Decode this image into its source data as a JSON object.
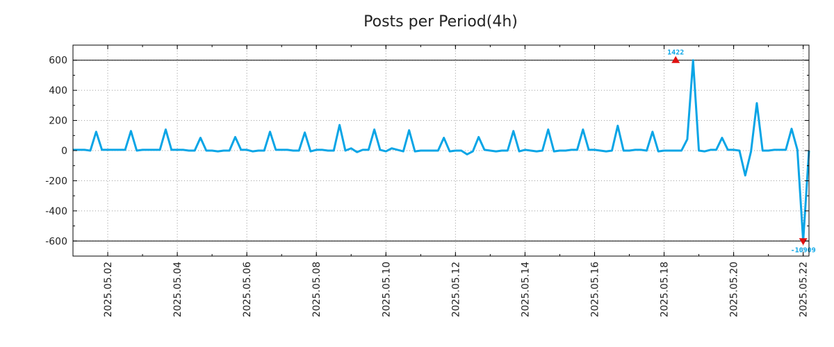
{
  "chart_data": {
    "type": "line",
    "title": "Posts per Period(4h)",
    "xlabel": "",
    "ylabel": "",
    "x_unit": "date",
    "xlim": [
      "2025.05.01 00:00",
      "2025.05.22 04:00"
    ],
    "ylim": [
      -700,
      700
    ],
    "yticks": [
      600,
      400,
      200,
      0,
      -200,
      -400,
      -600
    ],
    "ytick_labels": [
      "600",
      "400",
      "200",
      "0",
      "-200",
      "-400",
      "-600"
    ],
    "xticks": [
      "2025.05.02",
      "2025.05.04",
      "2025.05.06",
      "2025.05.08",
      "2025.05.10",
      "2025.05.12",
      "2025.05.14",
      "2025.05.16",
      "2025.05.18",
      "2025.05.20",
      "2025.05.22"
    ],
    "reference_lines": [
      600,
      -600
    ],
    "grid": true,
    "colors": {
      "line": "#0aa5e6",
      "marker": "#e01010",
      "annotation": "#0aa5e6"
    },
    "series": [
      {
        "x": [
          "2025.05.01 00:00",
          "2025.05.01 04:00",
          "2025.05.01 08:00",
          "2025.05.01 12:00",
          "2025.05.01 16:00",
          "2025.05.01 20:00",
          "2025.05.02 00:00",
          "2025.05.02 04:00",
          "2025.05.02 08:00",
          "2025.05.02 12:00",
          "2025.05.02 16:00",
          "2025.05.02 20:00",
          "2025.05.03 00:00",
          "2025.05.03 04:00",
          "2025.05.03 08:00",
          "2025.05.03 12:00",
          "2025.05.03 16:00",
          "2025.05.03 20:00",
          "2025.05.04 00:00",
          "2025.05.04 04:00",
          "2025.05.04 08:00",
          "2025.05.04 12:00",
          "2025.05.04 16:00",
          "2025.05.04 20:00",
          "2025.05.05 00:00",
          "2025.05.05 04:00",
          "2025.05.05 08:00",
          "2025.05.05 12:00",
          "2025.05.05 16:00",
          "2025.05.05 20:00",
          "2025.05.06 00:00",
          "2025.05.06 04:00",
          "2025.05.06 08:00",
          "2025.05.06 12:00",
          "2025.05.06 16:00",
          "2025.05.06 20:00",
          "2025.05.07 00:00",
          "2025.05.07 04:00",
          "2025.05.07 08:00",
          "2025.05.07 12:00",
          "2025.05.07 16:00",
          "2025.05.07 20:00",
          "2025.05.08 00:00",
          "2025.05.08 04:00",
          "2025.05.08 08:00",
          "2025.05.08 12:00",
          "2025.05.08 16:00",
          "2025.05.08 20:00",
          "2025.05.09 00:00",
          "2025.05.09 04:00",
          "2025.05.09 08:00",
          "2025.05.09 12:00",
          "2025.05.09 16:00",
          "2025.05.09 20:00",
          "2025.05.10 00:00",
          "2025.05.10 04:00",
          "2025.05.10 08:00",
          "2025.05.10 12:00",
          "2025.05.10 16:00",
          "2025.05.10 20:00",
          "2025.05.11 00:00",
          "2025.05.11 04:00",
          "2025.05.11 08:00",
          "2025.05.11 12:00",
          "2025.05.11 16:00",
          "2025.05.11 20:00",
          "2025.05.12 00:00",
          "2025.05.12 04:00",
          "2025.05.12 08:00",
          "2025.05.12 12:00",
          "2025.05.12 16:00",
          "2025.05.12 20:00",
          "2025.05.13 00:00",
          "2025.05.13 04:00",
          "2025.05.13 08:00",
          "2025.05.13 12:00",
          "2025.05.13 16:00",
          "2025.05.13 20:00",
          "2025.05.14 00:00",
          "2025.05.14 04:00",
          "2025.05.14 08:00",
          "2025.05.14 12:00",
          "2025.05.14 16:00",
          "2025.05.14 20:00",
          "2025.05.15 00:00",
          "2025.05.15 04:00",
          "2025.05.15 08:00",
          "2025.05.15 12:00",
          "2025.05.15 16:00",
          "2025.05.15 20:00",
          "2025.05.16 00:00",
          "2025.05.16 04:00",
          "2025.05.16 08:00",
          "2025.05.16 12:00",
          "2025.05.16 16:00",
          "2025.05.16 20:00",
          "2025.05.17 00:00",
          "2025.05.17 04:00",
          "2025.05.17 08:00",
          "2025.05.17 12:00",
          "2025.05.17 16:00",
          "2025.05.17 20:00",
          "2025.05.18 00:00",
          "2025.05.18 04:00",
          "2025.05.18 08:00",
          "2025.05.18 12:00",
          "2025.05.18 16:00",
          "2025.05.18 20:00",
          "2025.05.19 00:00",
          "2025.05.19 04:00",
          "2025.05.19 08:00",
          "2025.05.19 12:00",
          "2025.05.19 16:00",
          "2025.05.19 20:00",
          "2025.05.20 00:00",
          "2025.05.20 04:00",
          "2025.05.20 08:00",
          "2025.05.20 12:00",
          "2025.05.20 16:00",
          "2025.05.20 20:00",
          "2025.05.21 00:00",
          "2025.05.21 04:00",
          "2025.05.21 08:00",
          "2025.05.21 12:00",
          "2025.05.21 16:00",
          "2025.05.21 20:00",
          "2025.05.22 00:00",
          "2025.05.22 04:00"
        ],
        "values": [
          5,
          5,
          5,
          0,
          125,
          5,
          5,
          5,
          5,
          5,
          130,
          0,
          5,
          5,
          5,
          5,
          140,
          5,
          5,
          5,
          0,
          0,
          85,
          0,
          0,
          -5,
          0,
          0,
          90,
          5,
          5,
          -5,
          0,
          0,
          125,
          5,
          5,
          5,
          0,
          0,
          120,
          -5,
          5,
          5,
          0,
          0,
          170,
          0,
          15,
          -10,
          5,
          5,
          140,
          5,
          -5,
          15,
          5,
          -5,
          135,
          -5,
          0,
          0,
          0,
          0,
          85,
          -5,
          0,
          0,
          -25,
          -5,
          90,
          5,
          0,
          -5,
          0,
          0,
          130,
          -5,
          5,
          0,
          -5,
          0,
          140,
          -5,
          0,
          0,
          5,
          5,
          140,
          5,
          5,
          0,
          -5,
          0,
          165,
          0,
          0,
          5,
          5,
          0,
          125,
          -5,
          0,
          0,
          0,
          0,
          75,
          600,
          0,
          -5,
          5,
          5,
          85,
          5,
          5,
          0,
          -165,
          -5,
          315,
          0,
          0,
          5,
          5,
          5,
          145,
          5,
          -600,
          0
        ]
      }
    ],
    "annotations": [
      {
        "label": "1422",
        "x": "2025.05.18 08:00",
        "y": 600,
        "marker": "up-triangle"
      },
      {
        "label": "-10909",
        "x": "2025.05.22 00:00",
        "y": -600,
        "marker": "down-triangle"
      }
    ]
  }
}
